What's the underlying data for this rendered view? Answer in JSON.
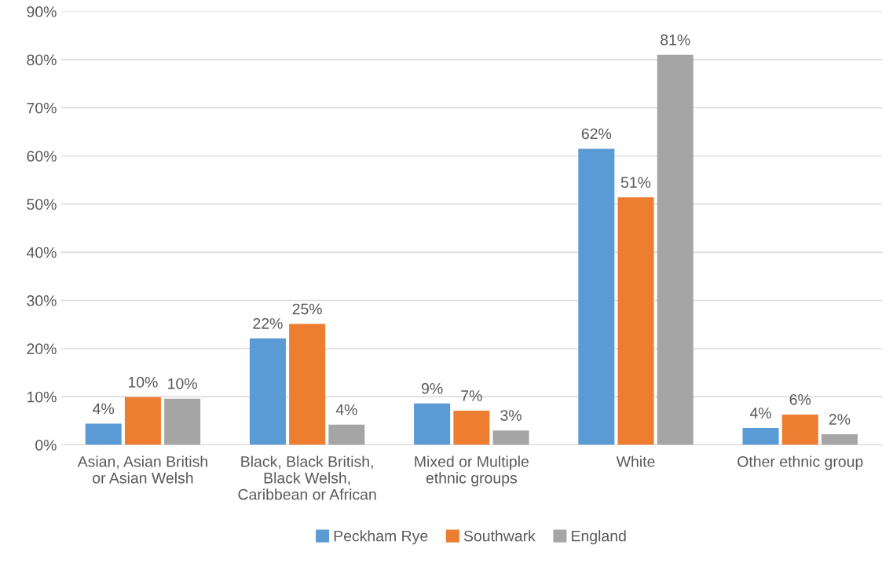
{
  "chart_data": {
    "type": "bar",
    "categories": [
      "Asian, Asian British\nor Asian Welsh",
      "Black, Black British,\nBlack Welsh,\nCaribbean or African",
      "Mixed or Multiple\nethnic groups",
      "White",
      "Other ethnic group"
    ],
    "series": [
      {
        "name": "Peckham Rye",
        "color": "#5b9bd5",
        "values": [
          4.4,
          22.1,
          8.6,
          61.5,
          3.5
        ],
        "value_labels": [
          "4%",
          "22%",
          "9%",
          "62%",
          "4%"
        ]
      },
      {
        "name": "Southwark",
        "color": "#ed7d31",
        "values": [
          9.9,
          25.1,
          7.1,
          51.4,
          6.3
        ],
        "value_labels": [
          "10%",
          "25%",
          "7%",
          "51%",
          "6%"
        ]
      },
      {
        "name": "England",
        "color": "#a5a5a5",
        "values": [
          9.6,
          4.2,
          3.0,
          81.0,
          2.2
        ],
        "value_labels": [
          "10%",
          "4%",
          "3%",
          "81%",
          "2%"
        ]
      }
    ],
    "ylim": [
      0,
      90
    ],
    "yticks": [
      {
        "value": 0,
        "label": "0%"
      },
      {
        "value": 10,
        "label": "10%"
      },
      {
        "value": 20,
        "label": "20%"
      },
      {
        "value": 30,
        "label": "30%"
      },
      {
        "value": 40,
        "label": "40%"
      },
      {
        "value": 50,
        "label": "50%"
      },
      {
        "value": 60,
        "label": "60%"
      },
      {
        "value": 70,
        "label": "70%"
      },
      {
        "value": 80,
        "label": "80%"
      },
      {
        "value": 90,
        "label": "90%"
      }
    ],
    "grid": "y",
    "legend": "bottom"
  }
}
